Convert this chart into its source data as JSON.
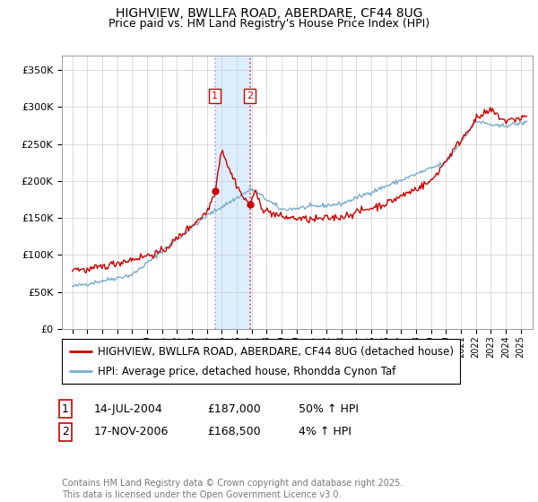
{
  "title": "HIGHVIEW, BWLLFA ROAD, ABERDARE, CF44 8UG",
  "subtitle": "Price paid vs. HM Land Registry's House Price Index (HPI)",
  "ylim": [
    0,
    370000
  ],
  "yticks": [
    0,
    50000,
    100000,
    150000,
    200000,
    250000,
    300000,
    350000
  ],
  "ytick_labels": [
    "£0",
    "£50K",
    "£100K",
    "£150K",
    "£200K",
    "£250K",
    "£300K",
    "£350K"
  ],
  "red_color": "#cc0000",
  "blue_color": "#7aadcc",
  "highlight_color": "#ddeeff",
  "vline1_color": "#aaaadd",
  "vline2_color": "#dd4444",
  "background_color": "#ffffff",
  "grid_color": "#cccccc",
  "purchase1_date": 2004.54,
  "purchase1_price": 187000,
  "purchase2_date": 2006.88,
  "purchase2_price": 168500,
  "purchase1_label": "1",
  "purchase2_label": "2",
  "legend1": "HIGHVIEW, BWLLFA ROAD, ABERDARE, CF44 8UG (detached house)",
  "legend2": "HPI: Average price, detached house, Rhondda Cynon Taf",
  "table_row1": [
    "1",
    "14-JUL-2004",
    "£187,000",
    "50% ↑ HPI"
  ],
  "table_row2": [
    "2",
    "17-NOV-2006",
    "£168,500",
    "4% ↑ HPI"
  ],
  "footer": "Contains HM Land Registry data © Crown copyright and database right 2025.\nThis data is licensed under the Open Government Licence v3.0.",
  "title_fontsize": 10,
  "subtitle_fontsize": 9,
  "tick_fontsize": 8,
  "legend_fontsize": 8.5
}
